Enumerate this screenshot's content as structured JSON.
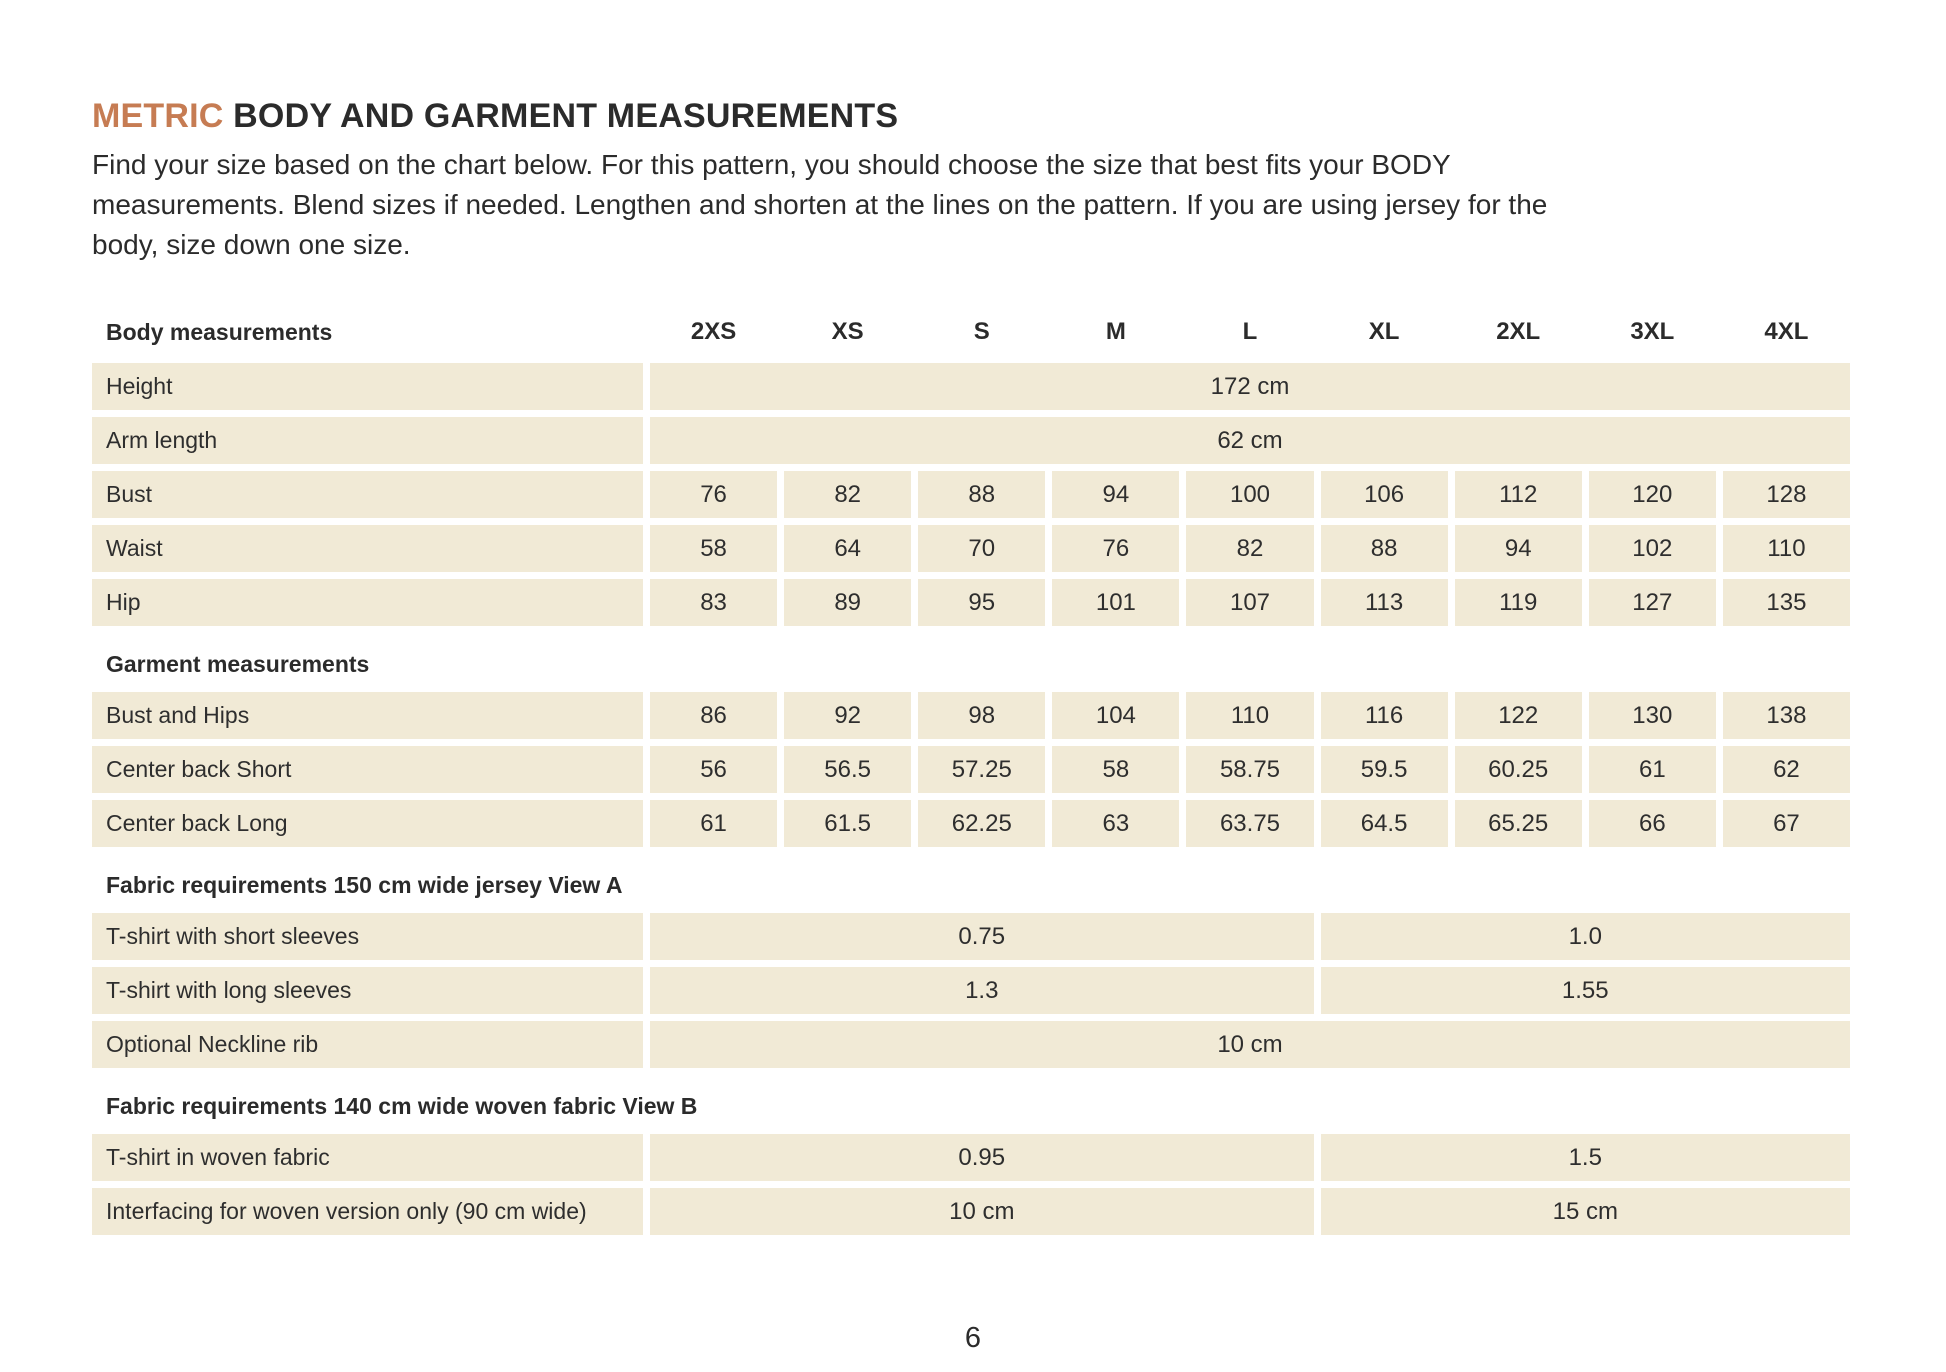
{
  "page": {
    "title_accent": "METRIC",
    "title_rest": " BODY AND GARMENT MEASUREMENTS",
    "intro": "Find your size based on the chart below. For this pattern, you should choose the size that best fits your BODY\nmeasurements. Blend sizes if needed. Lengthen and shorten at the lines on the pattern. If you are using jersey for the\nbody, size down one size.",
    "page_number": "6",
    "colors": {
      "accent": "#c67c53",
      "cell_background": "#f1ead6",
      "text": "#2e2e2e"
    }
  },
  "table": {
    "header_row": {
      "label": "Body measurements",
      "sizes": [
        "2XS",
        "XS",
        "S",
        "M",
        "L",
        "XL",
        "2XL",
        "3XL",
        "4XL"
      ]
    },
    "sections": [
      {
        "header": null,
        "rows": [
          {
            "label": "Height",
            "type": "merged",
            "value": "172 cm"
          },
          {
            "label": "Arm length",
            "type": "merged",
            "value": "62 cm"
          },
          {
            "label": "Bust",
            "type": "values",
            "values": [
              "76",
              "82",
              "88",
              "94",
              "100",
              "106",
              "112",
              "120",
              "128"
            ]
          },
          {
            "label": "Waist",
            "type": "values",
            "values": [
              "58",
              "64",
              "70",
              "76",
              "82",
              "88",
              "94",
              "102",
              "110"
            ]
          },
          {
            "label": "Hip",
            "type": "values",
            "values": [
              "83",
              "89",
              "95",
              "101",
              "107",
              "113",
              "119",
              "127",
              "135"
            ]
          }
        ]
      },
      {
        "header": "Garment measurements",
        "rows": [
          {
            "label": "Bust and Hips",
            "type": "values",
            "values": [
              "86",
              "92",
              "98",
              "104",
              "110",
              "116",
              "122",
              "130",
              "138"
            ]
          },
          {
            "label": "Center back Short",
            "type": "values",
            "values": [
              "56",
              "56.5",
              "57.25",
              "58",
              "58.75",
              "59.5",
              "60.25",
              "61",
              "62"
            ]
          },
          {
            "label": "Center back Long",
            "type": "values",
            "values": [
              "61",
              "61.5",
              "62.25",
              "63",
              "63.75",
              "64.5",
              "65.25",
              "66",
              "67"
            ]
          }
        ]
      },
      {
        "header": "Fabric requirements 150 cm wide jersey View A",
        "rows": [
          {
            "label": "T-shirt with short sleeves",
            "type": "split",
            "left": "0.75",
            "right": "1.0"
          },
          {
            "label": "T-shirt with long sleeves",
            "type": "split",
            "left": "1.3",
            "right": "1.55"
          },
          {
            "label": "Optional Neckline rib",
            "type": "merged",
            "value": "10 cm"
          }
        ]
      },
      {
        "header": "Fabric requirements 140 cm wide woven fabric View B",
        "rows": [
          {
            "label": "T-shirt in woven fabric",
            "type": "split",
            "left": "0.95",
            "right": "1.5"
          },
          {
            "label": "Interfacing for woven version only (90 cm wide)",
            "type": "split",
            "left": "10 cm",
            "right": "15 cm"
          }
        ]
      }
    ]
  }
}
